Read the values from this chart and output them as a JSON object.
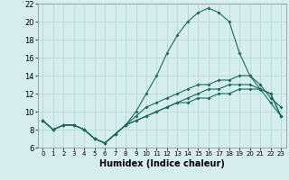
{
  "title": "",
  "xlabel": "Humidex (Indice chaleur)",
  "background_color": "#d6eeee",
  "grid_color": "#b8d8d8",
  "line_color": "#1a6b5a",
  "xlim": [
    -0.5,
    23.5
  ],
  "ylim": [
    6,
    22
  ],
  "xticks": [
    0,
    1,
    2,
    3,
    4,
    5,
    6,
    7,
    8,
    9,
    10,
    11,
    12,
    13,
    14,
    15,
    16,
    17,
    18,
    19,
    20,
    21,
    22,
    23
  ],
  "yticks": [
    6,
    8,
    10,
    12,
    14,
    16,
    18,
    20,
    22
  ],
  "line1_x": [
    0,
    1,
    2,
    3,
    4,
    5,
    6,
    7,
    8,
    9,
    10,
    11,
    12,
    13,
    14,
    15,
    16,
    17,
    18,
    19,
    20,
    21,
    22,
    23
  ],
  "line1_y": [
    9,
    8,
    8.5,
    8.5,
    8,
    7,
    6.5,
    7.5,
    8.5,
    9,
    9.5,
    10,
    10.5,
    11,
    11,
    11.5,
    11.5,
    12,
    12,
    12.5,
    12.5,
    12.5,
    12,
    9.5
  ],
  "line2_x": [
    0,
    1,
    2,
    3,
    4,
    5,
    6,
    7,
    8,
    9,
    10,
    11,
    12,
    13,
    14,
    15,
    16,
    17,
    18,
    19,
    20,
    21,
    22,
    23
  ],
  "line2_y": [
    9,
    8,
    8.5,
    8.5,
    8,
    7,
    6.5,
    7.5,
    8.5,
    9.5,
    10.5,
    11,
    11.5,
    12,
    12.5,
    13,
    13,
    13.5,
    13.5,
    14,
    14,
    13,
    11.5,
    10.5
  ],
  "line3_x": [
    0,
    1,
    2,
    3,
    4,
    5,
    6,
    7,
    8,
    9,
    10,
    11,
    12,
    13,
    14,
    15,
    16,
    17,
    18,
    19,
    20,
    21,
    22,
    23
  ],
  "line3_y": [
    9,
    8,
    8.5,
    8.5,
    8,
    7,
    6.5,
    7.5,
    8.5,
    10,
    12,
    14,
    16.5,
    18.5,
    20,
    21,
    21.5,
    21,
    20,
    16.5,
    14,
    12.5,
    11,
    9.5
  ],
  "line4_x": [
    0,
    1,
    2,
    3,
    4,
    5,
    6,
    7,
    8,
    9,
    10,
    11,
    12,
    13,
    14,
    15,
    16,
    17,
    18,
    19,
    20,
    21,
    22,
    23
  ],
  "line4_y": [
    9,
    8,
    8.5,
    8.5,
    8,
    7,
    6.5,
    7.5,
    8.5,
    9,
    9.5,
    10,
    10.5,
    11,
    11.5,
    12,
    12.5,
    12.5,
    13,
    13,
    13,
    12.5,
    12,
    9.5
  ],
  "xlabel_fontsize": 7,
  "tick_fontsize": 5,
  "ytick_fontsize": 6
}
